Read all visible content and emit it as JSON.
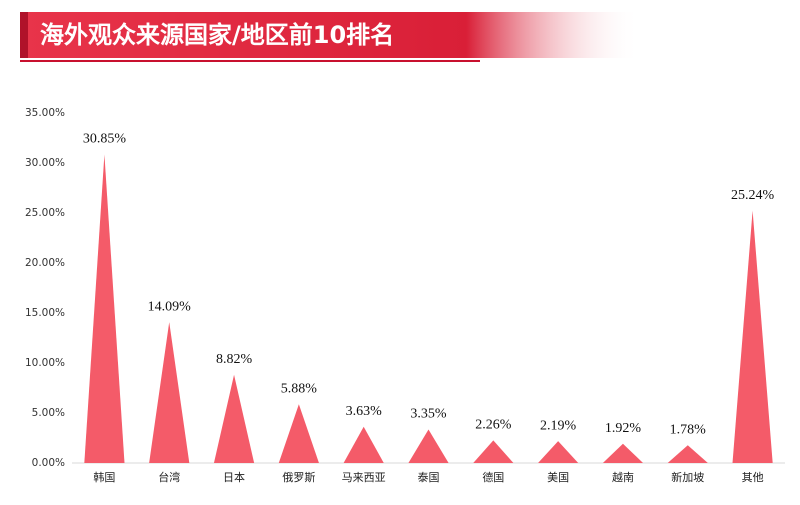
{
  "chart_data": {
    "type": "bar",
    "title": "海外观众来源国家/地区前10排名",
    "categories": [
      "韩国",
      "台湾",
      "日本",
      "俄罗斯",
      "马来西亚",
      "泰国",
      "德国",
      "美国",
      "越南",
      "新加坡",
      "其他"
    ],
    "values": [
      30.85,
      14.09,
      8.82,
      5.88,
      3.63,
      3.35,
      2.26,
      2.19,
      1.92,
      1.78,
      25.24
    ],
    "value_labels": [
      "30.85%",
      "14.09%",
      "8.82%",
      "5.88%",
      "3.63%",
      "3.35%",
      "2.26%",
      "2.19%",
      "1.92%",
      "1.78%",
      "25.24%"
    ],
    "color": "#f45b69",
    "ylim": [
      0,
      35
    ],
    "yticks": [
      {
        "value": 0,
        "label": "0.00%"
      },
      {
        "value": 5,
        "label": "5.00%"
      },
      {
        "value": 10,
        "label": "10.00%"
      },
      {
        "value": 15,
        "label": "15.00%"
      },
      {
        "value": 20,
        "label": "20.00%"
      },
      {
        "value": 25,
        "label": "25.00%"
      },
      {
        "value": 30,
        "label": "30.00%"
      },
      {
        "value": 35,
        "label": "35.00%"
      }
    ],
    "grid": false
  }
}
